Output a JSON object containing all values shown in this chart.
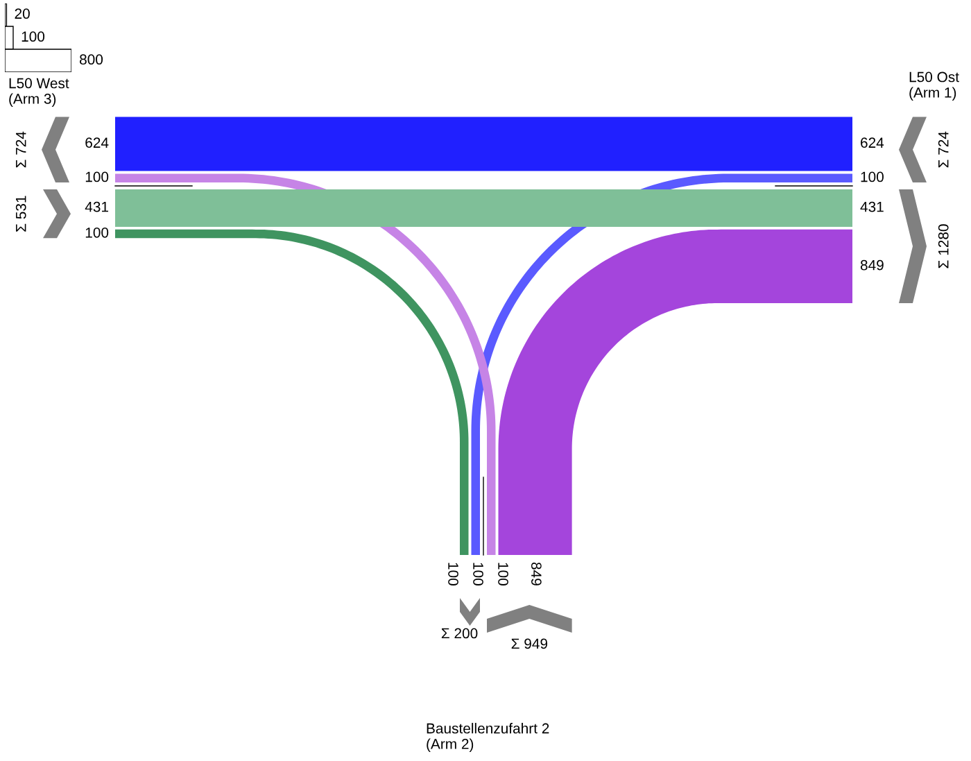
{
  "chart_data": [
    {
      "type": "bar",
      "orientation": "horizontal",
      "categories": [
        null,
        null,
        null
      ],
      "values": [
        20,
        100,
        800
      ],
      "color": "#ffffff",
      "data_labels": true
    },
    {
      "type": "other",
      "categories": [
        "L50 Ost\n(Arm 1)",
        "Baustellenzufahrt 2\n(Arm 2)",
        "L50 West\n(Arm 3)"
      ],
      "series": [
        {
          "color": "#2020ff",
          "values": [
            624,
            null,
            624
          ]
        },
        {
          "color": "#5a5aff",
          "values": [
            100,
            100,
            null
          ]
        },
        {
          "color": "#c684e6",
          "values": [
            null,
            100,
            100
          ]
        },
        {
          "color": "#a445dc",
          "values": [
            849,
            849,
            null
          ]
        },
        {
          "color": "#7fbf98",
          "values": [
            431,
            null,
            431
          ]
        },
        {
          "color": "#3f9460",
          "values": [
            null,
            100,
            100
          ]
        }
      ],
      "totals": [
        "Σ 724",
        "Σ 1280",
        "Σ 949",
        "Σ 200",
        "Σ 531",
        "Σ 724"
      ],
      "data_labels": true
    }
  ]
}
